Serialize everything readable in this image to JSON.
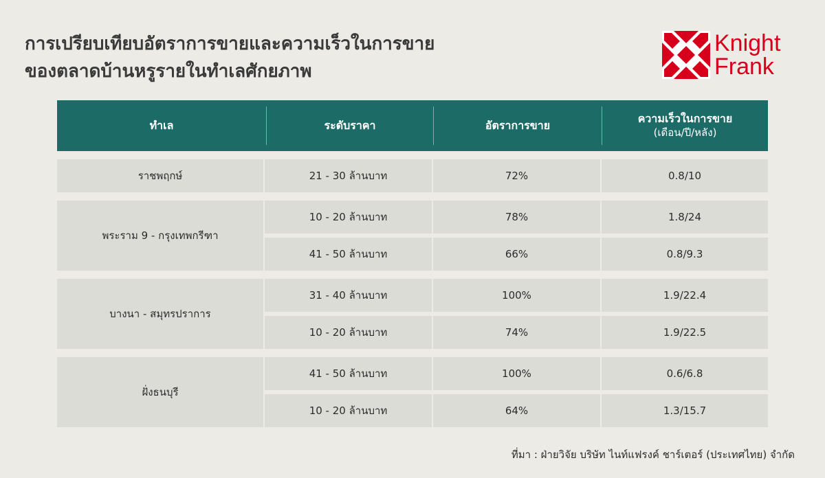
{
  "title": {
    "line1": "การเปรียบเทียบอัตราการขายและความเร็วในการขาย",
    "line2": "ของตลาดบ้านหรูรายในทำเลศักยภาพ"
  },
  "logo": {
    "line1": "Knight",
    "line2": "Frank",
    "color": "#d6001c"
  },
  "table": {
    "header_color": "#1d6b66",
    "headers": {
      "location": "ทำเล",
      "price": "ระดับราคา",
      "sales_rate": "อัตราการขาย",
      "speed": "ความเร็วในการขาย",
      "speed_sub": "(เดือน/ปี/หลัง)"
    },
    "groups": [
      {
        "location": "ราชพฤกษ์",
        "rows": [
          {
            "price": "21 - 30 ล้านบาท",
            "rate": "72%",
            "speed": "0.8/10"
          }
        ]
      },
      {
        "location": "พระราม 9 - กรุงเทพกรีฑา",
        "rows": [
          {
            "price": "10 - 20 ล้านบาท",
            "rate": "78%",
            "speed": "1.8/24"
          },
          {
            "price": "41 - 50 ล้านบาท",
            "rate": "66%",
            "speed": "0.8/9.3"
          }
        ]
      },
      {
        "location": "บางนา - สมุทรปราการ",
        "rows": [
          {
            "price": "31 - 40 ล้านบาท",
            "rate": "100%",
            "speed": "1.9/22.4"
          },
          {
            "price": "10 - 20 ล้านบาท",
            "rate": "74%",
            "speed": "1.9/22.5"
          }
        ]
      },
      {
        "location": "ฝั่งธนบุรี",
        "rows": [
          {
            "price": "41 - 50 ล้านบาท",
            "rate": "100%",
            "speed": "0.6/6.8"
          },
          {
            "price": "10 - 20 ล้านบาท",
            "rate": "64%",
            "speed": "1.3/15.7"
          }
        ]
      }
    ]
  },
  "source": "ที่มา : ฝ่ายวิจัย บริษัท ไนท์แฟรงค์ ชาร์เตอร์ (ประเทศไทย) จำกัด"
}
